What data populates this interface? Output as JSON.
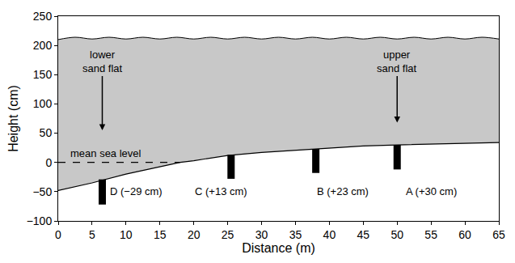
{
  "chart_data": {
    "type": "area",
    "xlabel": "Distance (m)",
    "ylabel": "Height (cm)",
    "xlim": [
      0,
      65
    ],
    "xticks": [
      0,
      5,
      10,
      15,
      20,
      25,
      30,
      35,
      40,
      45,
      50,
      55,
      60,
      65
    ],
    "ylim": [
      -100,
      250
    ],
    "yticks": [
      {
        "value": -100,
        "label": "−100"
      },
      {
        "value": -50,
        "label": "−50"
      },
      0,
      50,
      100,
      150,
      200,
      250
    ],
    "grid": false,
    "series": [
      {
        "type": "line",
        "color": "#000000",
        "x": [
          0,
          5,
          10,
          15,
          18,
          20,
          25,
          30,
          35,
          40,
          45,
          50,
          55,
          60,
          65
        ],
        "values": [
          -48,
          -35,
          -20,
          -8,
          0,
          3,
          12,
          17,
          21,
          25,
          28,
          30,
          31,
          32,
          34
        ]
      },
      {
        "type": "area",
        "color": "#c8c8c8",
        "x": [
          0,
          2.5,
          5,
          7.5,
          10,
          12.5,
          15,
          17.5,
          20,
          22.5,
          25,
          27.5,
          30,
          32.5,
          35,
          37.5,
          40,
          42.5,
          45,
          47.5,
          50,
          52.5,
          55,
          57.5,
          60,
          62.5,
          65
        ],
        "values": [
          210,
          214,
          211,
          214,
          211,
          214,
          211,
          214,
          211,
          214,
          211,
          214,
          211,
          214,
          211,
          214,
          211,
          214,
          211,
          214,
          211,
          214,
          211,
          214,
          211,
          214,
          211
        ]
      },
      {
        "type": "line",
        "line_style": "dashed",
        "color": "#000000",
        "x": [
          0,
          18
        ],
        "values": [
          0,
          0
        ]
      },
      {
        "type": "bar",
        "color": "#000000",
        "x": [
          6.5,
          25.5,
          38,
          50
        ],
        "low": [
          -72,
          -28,
          -18,
          -12
        ],
        "high": [
          -29,
          13,
          23,
          30
        ]
      }
    ],
    "annotations": [
      {
        "text": "lower sand flat",
        "x": 6.5,
        "y": 55,
        "ax": 6.5,
        "ay": 172
      },
      {
        "text": "upper sand flat",
        "x": 50,
        "y": 68,
        "ax": 50,
        "ay": 172
      },
      {
        "text": "mean sea level",
        "x": 1.5,
        "y": 16
      },
      {
        "text": "D (−29 cm)",
        "x": 11.5,
        "y": -50
      },
      {
        "text": "C (+13 cm)",
        "x": 24,
        "y": -50
      },
      {
        "text": "B (+23 cm)",
        "x": 42,
        "y": -50
      },
      {
        "text": "A (+30 cm)",
        "x": 55,
        "y": -50
      }
    ]
  }
}
